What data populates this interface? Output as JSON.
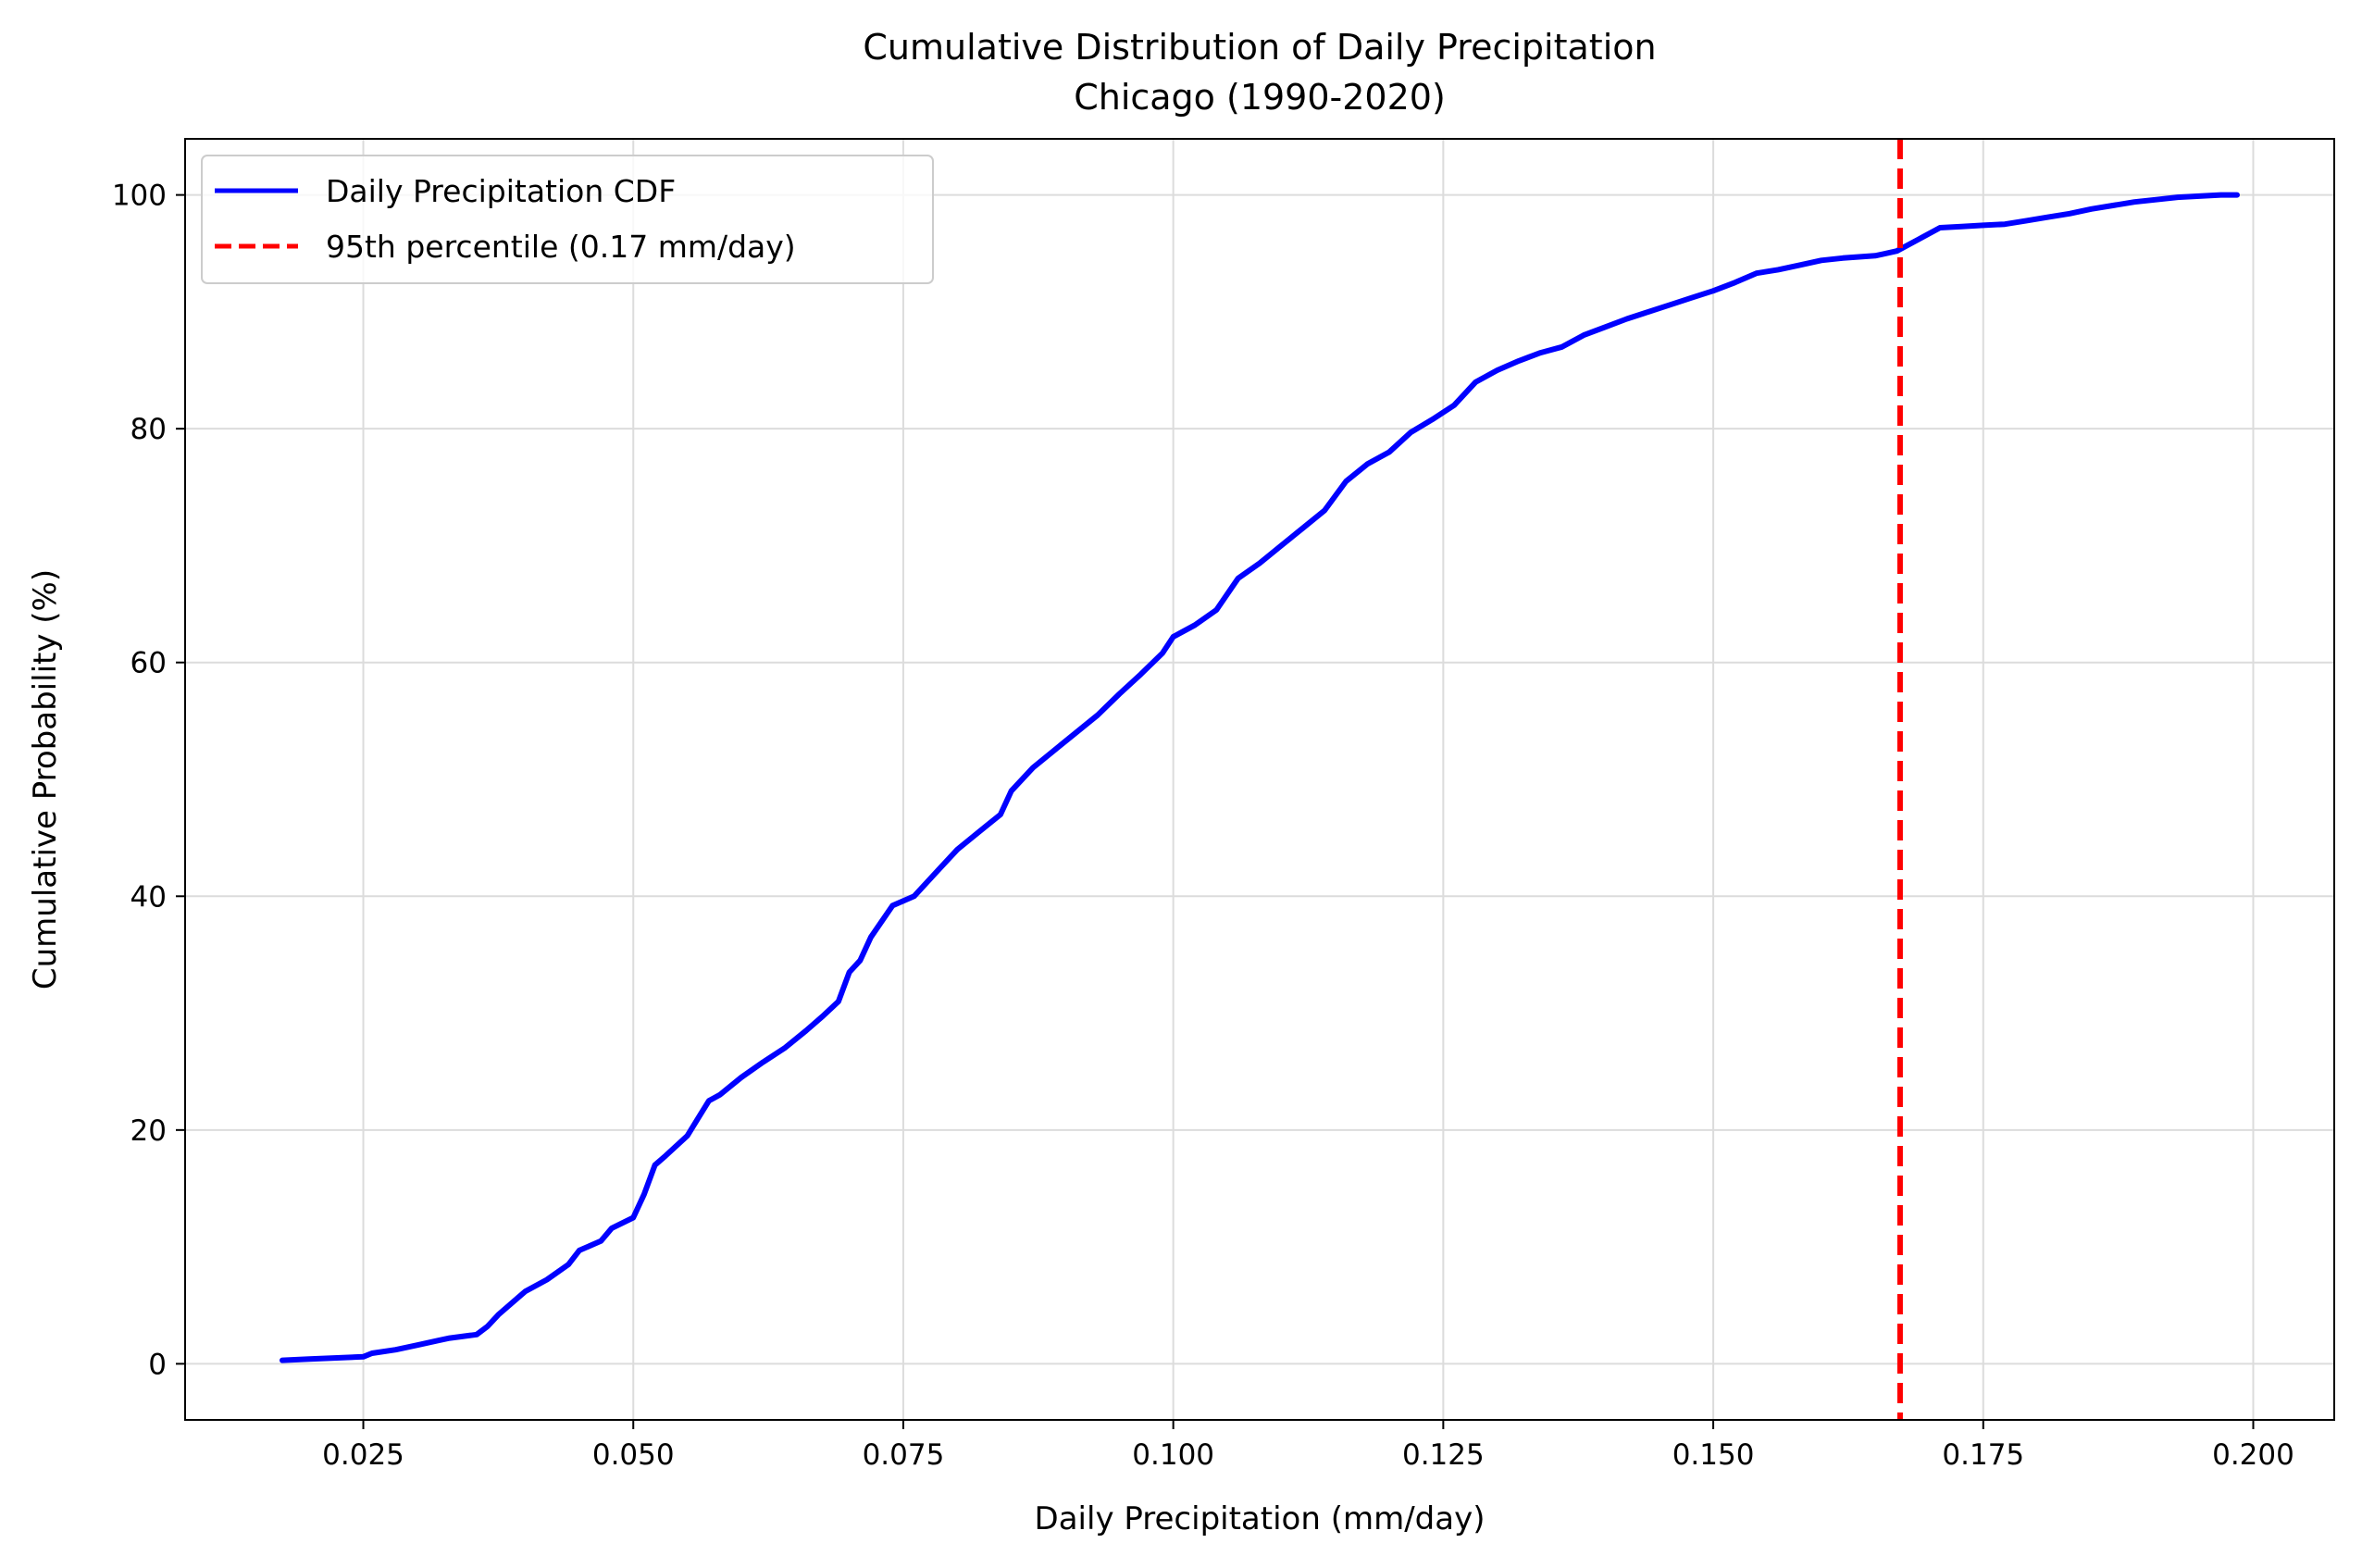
{
  "chart_data": {
    "type": "line",
    "title": "Cumulative Distribution of Daily Precipitation",
    "subtitle": "Chicago (1990-2020)",
    "xlabel": "Daily Precipitation (mm/day)",
    "ylabel": "Cumulative Probability (%)",
    "xlim": [
      0.0085,
      0.2075
    ],
    "ylim": [
      -4.8,
      104.8
    ],
    "x_ticks": [
      0.025,
      0.05,
      0.075,
      0.1,
      0.125,
      0.15,
      0.175,
      0.2
    ],
    "x_tick_labels": [
      "0.025",
      "0.050",
      "0.075",
      "0.100",
      "0.125",
      "0.150",
      "0.175",
      "0.200"
    ],
    "y_ticks": [
      0,
      20,
      40,
      60,
      80,
      100
    ],
    "y_tick_labels": [
      "0",
      "20",
      "40",
      "60",
      "80",
      "100"
    ],
    "grid": true,
    "legend_position": "top-left",
    "series": [
      {
        "name": "Daily Precipitation CDF",
        "color": "#0000ff",
        "style": "solid",
        "x": [
          0.0175,
          0.02,
          0.025,
          0.0258,
          0.028,
          0.03,
          0.032,
          0.033,
          0.0355,
          0.0365,
          0.0375,
          0.0385,
          0.04,
          0.042,
          0.044,
          0.045,
          0.047,
          0.048,
          0.05,
          0.051,
          0.052,
          0.053,
          0.055,
          0.056,
          0.057,
          0.058,
          0.06,
          0.062,
          0.064,
          0.066,
          0.0675,
          0.069,
          0.07,
          0.071,
          0.072,
          0.074,
          0.076,
          0.078,
          0.08,
          0.082,
          0.084,
          0.085,
          0.087,
          0.089,
          0.091,
          0.093,
          0.095,
          0.097,
          0.099,
          0.1,
          0.102,
          0.104,
          0.106,
          0.108,
          0.11,
          0.112,
          0.114,
          0.116,
          0.118,
          0.12,
          0.122,
          0.124,
          0.126,
          0.128,
          0.13,
          0.132,
          0.134,
          0.136,
          0.138,
          0.14,
          0.142,
          0.144,
          0.146,
          0.148,
          0.15,
          0.152,
          0.154,
          0.156,
          0.158,
          0.16,
          0.162,
          0.165,
          0.167,
          0.169,
          0.171,
          0.173,
          0.175,
          0.177,
          0.179,
          0.181,
          0.183,
          0.185,
          0.187,
          0.189,
          0.191,
          0.193,
          0.195,
          0.197,
          0.1985
        ],
        "y": [
          0.3,
          0.4,
          0.6,
          0.9,
          1.2,
          1.6,
          2.0,
          2.2,
          2.5,
          3.2,
          4.2,
          5.0,
          6.2,
          7.2,
          8.5,
          9.7,
          10.5,
          11.6,
          12.5,
          14.5,
          17.0,
          17.8,
          19.5,
          21.0,
          22.5,
          23.0,
          24.5,
          25.8,
          27.0,
          28.5,
          29.7,
          31.0,
          33.5,
          34.5,
          36.5,
          39.2,
          40.0,
          42.0,
          44.0,
          45.5,
          47.0,
          49.0,
          51.0,
          52.5,
          54.0,
          55.5,
          57.3,
          59.0,
          60.8,
          62.2,
          63.2,
          64.5,
          67.2,
          68.5,
          70.0,
          71.5,
          73.0,
          75.5,
          77.0,
          78.0,
          79.7,
          80.8,
          82.0,
          84.0,
          85.0,
          85.8,
          86.5,
          87.0,
          88.0,
          88.7,
          89.4,
          90.0,
          90.6,
          91.2,
          91.8,
          92.5,
          93.3,
          93.6,
          94.0,
          94.4,
          94.6,
          94.8,
          95.2,
          96.2,
          97.2,
          97.3,
          97.4,
          97.5,
          97.8,
          98.1,
          98.4,
          98.8,
          99.1,
          99.4,
          99.6,
          99.8,
          99.9,
          100.0,
          100.0
        ]
      },
      {
        "name": "95th percentile (0.17 mm/day)",
        "color": "#ff0000",
        "style": "dashed",
        "x_value": 0.1673
      }
    ]
  }
}
